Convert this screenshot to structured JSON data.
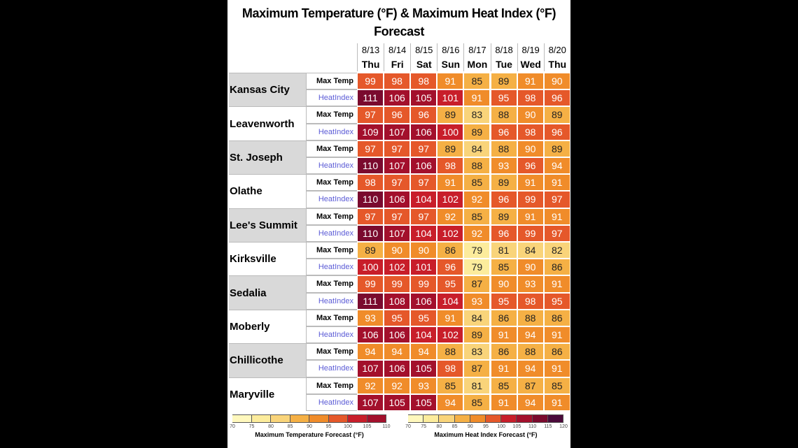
{
  "header": {
    "title": "Maximum Temperature (°F) & Maximum Heat Index (°F) Forecast"
  },
  "table": {
    "dates": [
      "8/13",
      "8/14",
      "8/15",
      "8/16",
      "8/17",
      "8/18",
      "8/19",
      "8/20"
    ],
    "days": [
      "Thu",
      "Fri",
      "Sat",
      "Sun",
      "Mon",
      "Tue",
      "Wed",
      "Thu"
    ],
    "row_labels": [
      "Max Temp",
      "HeatIndex"
    ],
    "cities": [
      {
        "name": "Kansas City",
        "max_temp": [
          99,
          98,
          98,
          91,
          85,
          89,
          91,
          90
        ],
        "heat_index": [
          111,
          106,
          105,
          101,
          91,
          95,
          98,
          96
        ]
      },
      {
        "name": "Leavenworth",
        "max_temp": [
          97,
          96,
          96,
          89,
          83,
          88,
          90,
          89
        ],
        "heat_index": [
          109,
          107,
          106,
          100,
          89,
          96,
          98,
          96
        ]
      },
      {
        "name": "St. Joseph",
        "max_temp": [
          97,
          97,
          97,
          89,
          84,
          88,
          90,
          89
        ],
        "heat_index": [
          110,
          107,
          106,
          98,
          88,
          93,
          96,
          94
        ]
      },
      {
        "name": "Olathe",
        "max_temp": [
          98,
          97,
          97,
          91,
          85,
          89,
          91,
          91
        ],
        "heat_index": [
          110,
          106,
          104,
          102,
          92,
          96,
          99,
          97
        ]
      },
      {
        "name": "Lee's Summit",
        "max_temp": [
          97,
          97,
          97,
          92,
          85,
          89,
          91,
          91
        ],
        "heat_index": [
          110,
          107,
          104,
          102,
          92,
          96,
          99,
          97
        ]
      },
      {
        "name": "Kirksville",
        "max_temp": [
          89,
          90,
          90,
          86,
          79,
          81,
          84,
          82
        ],
        "heat_index": [
          100,
          102,
          101,
          96,
          79,
          85,
          90,
          86
        ]
      },
      {
        "name": "Sedalia",
        "max_temp": [
          99,
          99,
          99,
          95,
          87,
          90,
          93,
          91
        ],
        "heat_index": [
          111,
          108,
          106,
          104,
          93,
          95,
          98,
          95
        ]
      },
      {
        "name": "Moberly",
        "max_temp": [
          93,
          95,
          95,
          91,
          84,
          86,
          88,
          86
        ],
        "heat_index": [
          106,
          106,
          104,
          102,
          89,
          91,
          94,
          91
        ]
      },
      {
        "name": "Chillicothe",
        "max_temp": [
          94,
          94,
          94,
          88,
          83,
          86,
          88,
          86
        ],
        "heat_index": [
          107,
          106,
          105,
          98,
          87,
          91,
          94,
          91
        ]
      },
      {
        "name": "Maryville",
        "max_temp": [
          92,
          92,
          93,
          85,
          81,
          85,
          87,
          85
        ],
        "heat_index": [
          107,
          105,
          105,
          94,
          85,
          91,
          94,
          91
        ]
      }
    ]
  },
  "legends": [
    {
      "label": "Maximum Temperature Forecast (°F)",
      "ticks": [
        70,
        75,
        80,
        85,
        90,
        95,
        100,
        105,
        110
      ],
      "colors": [
        "#fff8bd",
        "#fcec9c",
        "#f9d47a",
        "#f5b045",
        "#f08c2a",
        "#e5582a",
        "#c81e2a",
        "#a3102c"
      ]
    },
    {
      "label": "Maximum Heat Index Forecast (°F)",
      "ticks": [
        70,
        75,
        80,
        85,
        90,
        95,
        100,
        105,
        110,
        115,
        120
      ],
      "colors": [
        "#fff8bd",
        "#fcec9c",
        "#f9d47a",
        "#f5b045",
        "#f08c2a",
        "#e5582a",
        "#c81e2a",
        "#a3102c",
        "#7a0a2e",
        "#4a0a3a"
      ]
    }
  ]
}
